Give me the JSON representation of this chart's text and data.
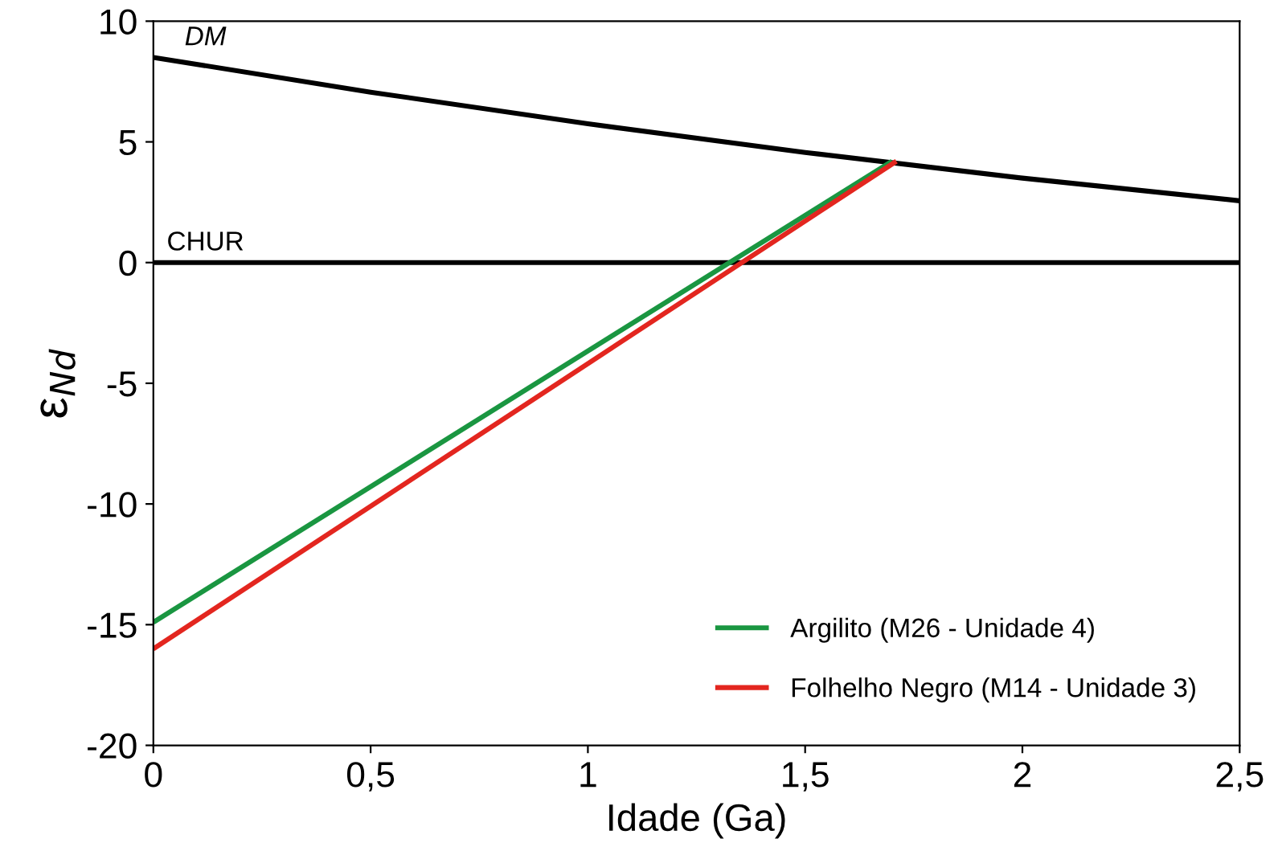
{
  "chart_data": {
    "type": "line",
    "xlabel": "Idade (Ga)",
    "ylabel": "ε$_{Nd}$",
    "xlim": [
      0,
      2.5
    ],
    "ylim": [
      -20,
      10
    ],
    "xticks": [
      0,
      {
        "value": 0.5,
        "label": "0,5"
      },
      1,
      {
        "value": 1.5,
        "label": "1,5"
      },
      2,
      {
        "value": 2.5,
        "label": "2,5"
      }
    ],
    "yticks": [
      -20,
      -15,
      -10,
      -5,
      0,
      5,
      10
    ],
    "grid": false,
    "legend": "bottom right",
    "marker": "none",
    "line_style": "solid",
    "series": [
      {
        "color": "#000000",
        "x": [
          0,
          0.5,
          1,
          1.5,
          2,
          2.5
        ],
        "values": [
          8.5,
          7.06,
          5.75,
          4.56,
          3.5,
          2.56
        ]
      },
      {
        "color": "#000000",
        "x": [
          0,
          2.5
        ],
        "values": [
          0,
          0
        ]
      },
      {
        "name": "Argilito (M26 - Unidade 4)",
        "color": "#1a9641",
        "x": [
          0,
          1.7
        ],
        "values": [
          -14.9,
          4.2
        ]
      },
      {
        "name": "Folhelho Negro (M14 - Unidade 3)",
        "color": "#e3261f",
        "x": [
          0,
          1.71
        ],
        "values": [
          -16,
          4.2
        ]
      }
    ],
    "annotations": [
      "DM",
      "CHUR"
    ]
  }
}
